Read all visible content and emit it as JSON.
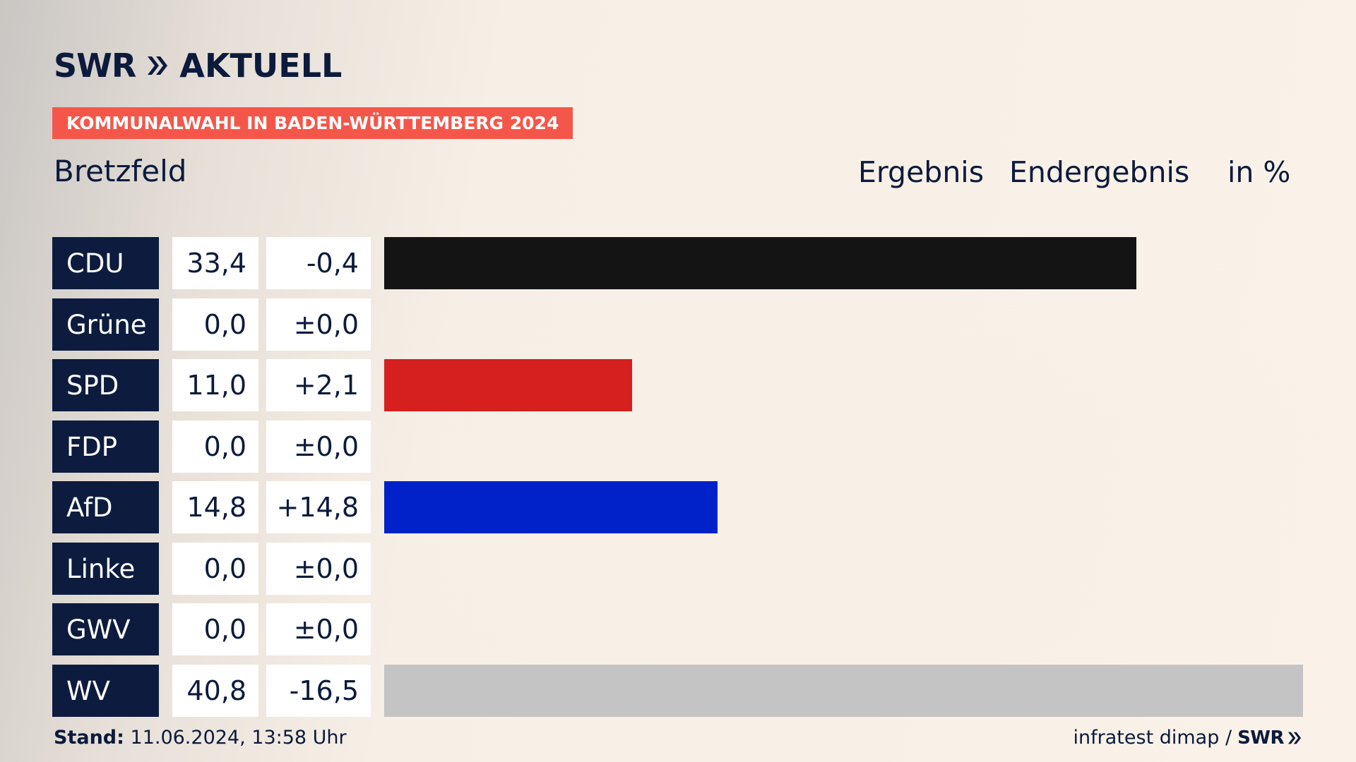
{
  "brand": {
    "logo_text": "SWR",
    "logo_product": "AKTUELL",
    "footer_logo": "SWR"
  },
  "banner": "KOMMUNALWAHL IN BADEN-WÜRTTEMBERG 2024",
  "subtitle": "Bretzfeld",
  "header": {
    "col1": "Ergebnis",
    "col2": "Endergebnis",
    "unit": "in %"
  },
  "footer": {
    "stand_label": "Stand:",
    "stand_value": "11.06.2024, 13:58 Uhr",
    "source": "infratest dimap /"
  },
  "chart_data": {
    "type": "bar",
    "orientation": "horizontal",
    "categories": [
      "CDU",
      "Grüne",
      "SPD",
      "FDP",
      "AfD",
      "Linke",
      "GWV",
      "WV"
    ],
    "values": [
      33.4,
      0.0,
      11.0,
      0.0,
      14.8,
      0.0,
      0.0,
      40.8
    ],
    "value_labels": [
      "33,4",
      "0,0",
      "11,0",
      "0,0",
      "14,8",
      "0,0",
      "0,0",
      "40,8"
    ],
    "diff_labels": [
      "-0,4",
      "±0,0",
      "+2,1",
      "±0,0",
      "+14,8",
      "±0,0",
      "±0,0",
      "-16,5"
    ],
    "colors": [
      "#141414",
      "#3a9b3a",
      "#d61f1f",
      "#f2d21c",
      "#0022c8",
      "#b0245a",
      "#888888",
      "#c4c4c4"
    ],
    "xlim": [
      0,
      40.8
    ]
  }
}
